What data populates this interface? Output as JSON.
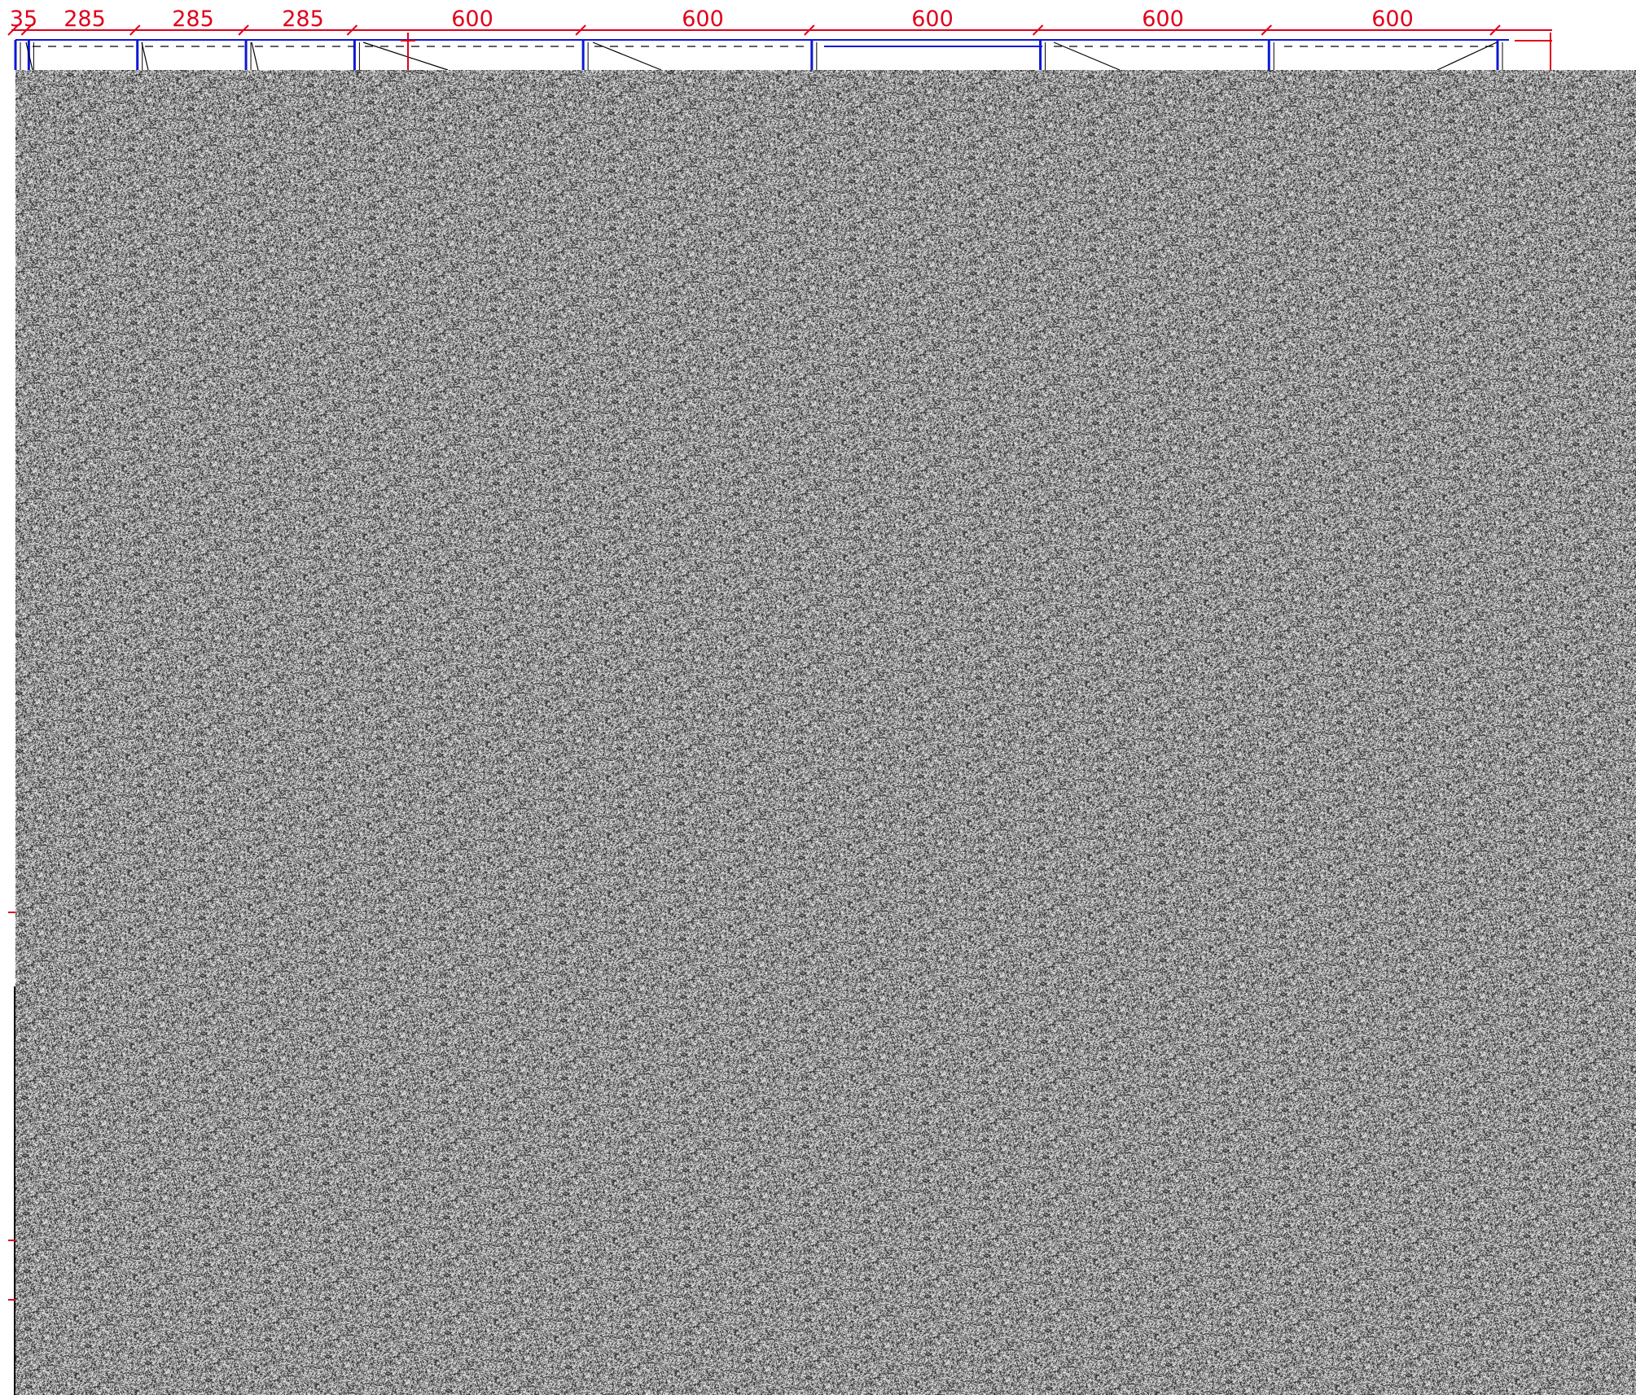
{
  "dimensions": {
    "segments": [
      {
        "label": "35",
        "value": 35
      },
      {
        "label": "285",
        "value": 285
      },
      {
        "label": "285",
        "value": 285
      },
      {
        "label": "285",
        "value": 285
      },
      {
        "label": "600",
        "value": 600
      },
      {
        "label": "600",
        "value": 600
      },
      {
        "label": "600",
        "value": 600
      },
      {
        "label": "600",
        "value": 600
      },
      {
        "label": "600",
        "value": 600
      }
    ]
  },
  "colors": {
    "dimension": "#e0001b",
    "cabinet_outline": "#0b18d6",
    "linework": "#000000",
    "noise_dark": "#1a1a1a",
    "noise_light": "#ffffff"
  }
}
